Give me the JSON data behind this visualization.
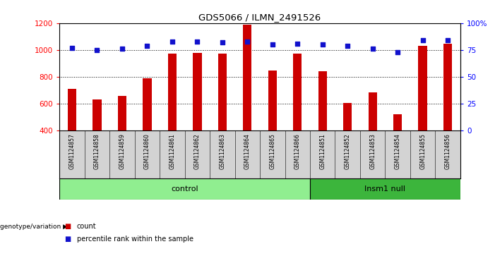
{
  "title": "GDS5066 / ILMN_2491526",
  "samples": [
    "GSM1124857",
    "GSM1124858",
    "GSM1124859",
    "GSM1124860",
    "GSM1124861",
    "GSM1124862",
    "GSM1124863",
    "GSM1124864",
    "GSM1124865",
    "GSM1124866",
    "GSM1124851",
    "GSM1124852",
    "GSM1124853",
    "GSM1124854",
    "GSM1124855",
    "GSM1124856"
  ],
  "counts": [
    710,
    635,
    660,
    790,
    975,
    980,
    975,
    1190,
    845,
    975,
    840,
    608,
    685,
    525,
    1030,
    1045
  ],
  "percentiles": [
    77,
    75,
    76,
    79,
    83,
    83,
    82,
    83,
    80,
    81,
    80,
    79,
    76,
    73,
    84,
    84
  ],
  "n_control": 10,
  "n_insm1": 6,
  "bar_color": "#CC0000",
  "dot_color": "#1111CC",
  "ylim_left": [
    400,
    1200
  ],
  "ylim_right": [
    0,
    100
  ],
  "yticks_left": [
    400,
    600,
    800,
    1000,
    1200
  ],
  "yticks_right": [
    0,
    25,
    50,
    75,
    100
  ],
  "yticklabels_right": [
    "0",
    "25",
    "50",
    "75",
    "100%"
  ],
  "grid_values": [
    600,
    800,
    1000
  ],
  "label_count": "count",
  "label_percentile": "percentile rank within the sample",
  "genotype_label": "genotype/variation",
  "bg_sample_color": "#d3d3d3",
  "group_color_control": "#90EE90",
  "group_color_insm1": "#3CB53C",
  "plot_bg": "#ffffff",
  "bar_width": 0.35
}
